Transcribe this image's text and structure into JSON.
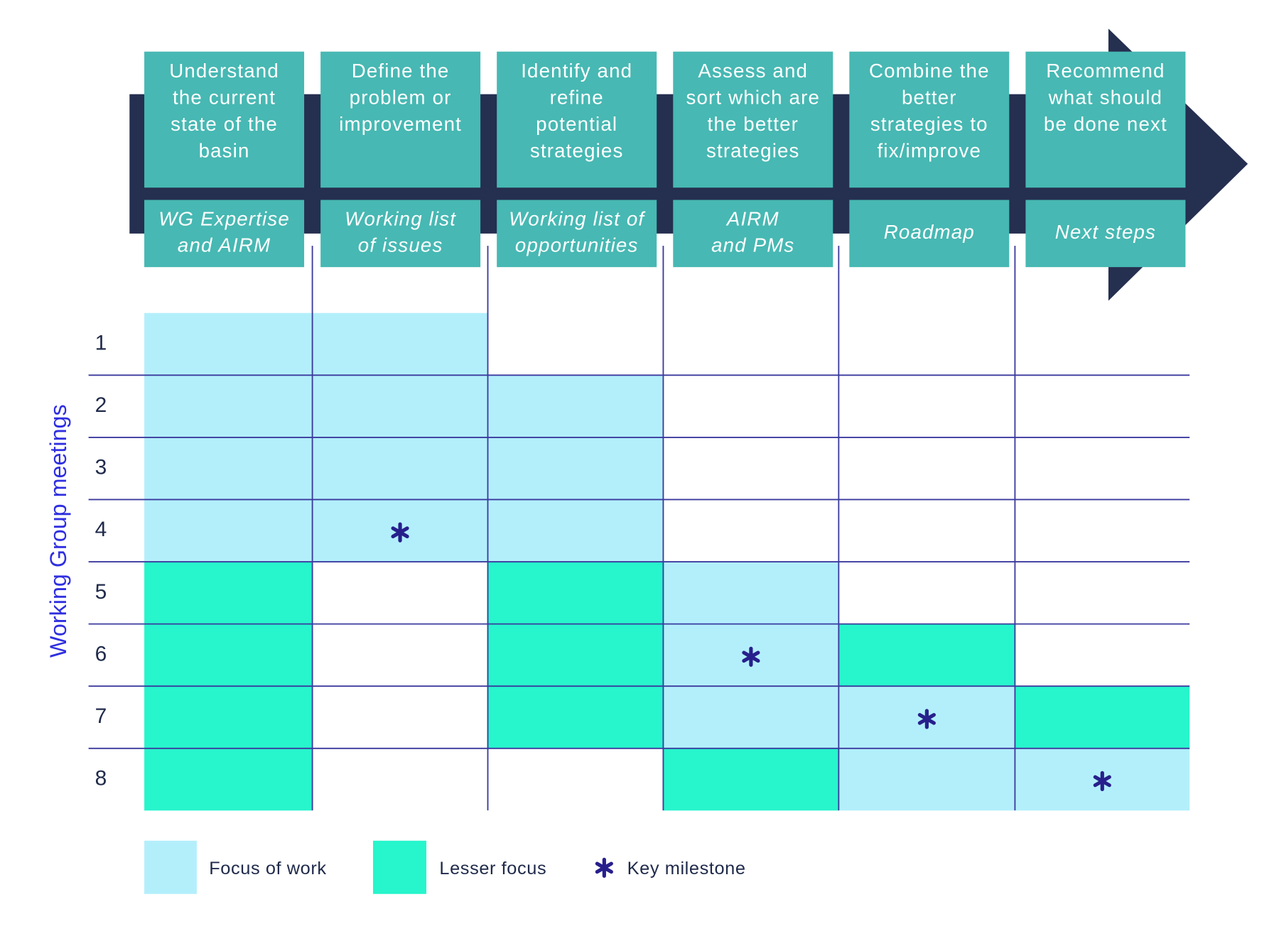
{
  "phases": [
    {
      "title": [
        "Understand",
        "the current",
        "state of the",
        "basin"
      ],
      "output": [
        "WG Expertise",
        "and AIRM"
      ]
    },
    {
      "title": [
        "Define the",
        "problem or",
        "improvement"
      ],
      "output": [
        "Working list",
        "of issues"
      ]
    },
    {
      "title": [
        "Identify and",
        "refine",
        "potential",
        "strategies"
      ],
      "output": [
        "Working list of",
        "opportunities"
      ]
    },
    {
      "title": [
        "Assess and",
        "sort which are",
        "the better",
        "strategies"
      ],
      "output": [
        "AIRM",
        "and PMs"
      ]
    },
    {
      "title": [
        "Combine the",
        "better",
        "strategies to",
        "fix/improve"
      ],
      "output": [
        "Roadmap"
      ]
    },
    {
      "title": [
        "Recommend",
        "what should",
        "be done next"
      ],
      "output": [
        "Next steps"
      ]
    }
  ],
  "y_label": "Working Group meetings",
  "meetings": [
    "1",
    "2",
    "3",
    "4",
    "5",
    "6",
    "7",
    "8"
  ],
  "cells": [
    [
      0,
      0,
      null,
      null,
      null,
      null
    ],
    [
      0,
      0,
      0,
      null,
      null,
      null
    ],
    [
      0,
      0,
      0,
      null,
      null,
      null
    ],
    [
      0,
      0,
      0,
      null,
      null,
      null
    ],
    [
      1,
      null,
      1,
      0,
      null,
      null
    ],
    [
      1,
      null,
      1,
      0,
      1,
      null
    ],
    [
      1,
      null,
      1,
      0,
      0,
      1
    ],
    [
      1,
      null,
      null,
      1,
      0,
      0
    ]
  ],
  "milestones": [
    [
      3,
      1
    ],
    [
      5,
      3
    ],
    [
      6,
      4
    ],
    [
      7,
      5
    ]
  ],
  "legend": [
    "Focus of work",
    "Lesser focus",
    "Key milestone"
  ]
}
